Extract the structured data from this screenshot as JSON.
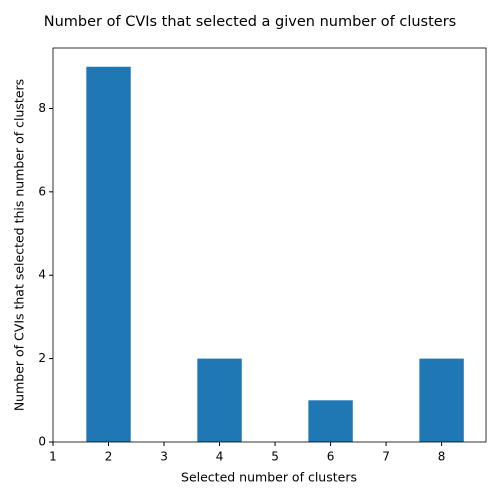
{
  "chart_data": {
    "type": "bar",
    "title": "Number of CVIs that selected a given number of clusters",
    "x_label": "Selected number of clusters",
    "y_label": "Number of CVIs that selected this number of clusters",
    "x": [
      2,
      4,
      6,
      8
    ],
    "values": [
      9,
      2,
      1,
      2
    ],
    "color": "#1f77b4",
    "xlim": [
      1,
      8.8
    ],
    "xticks": [
      1,
      2,
      3,
      4,
      5,
      6,
      7,
      8
    ],
    "ylim": [
      0,
      9.45
    ],
    "yticks": [
      0,
      2,
      4,
      6,
      8
    ],
    "grid": false
  }
}
